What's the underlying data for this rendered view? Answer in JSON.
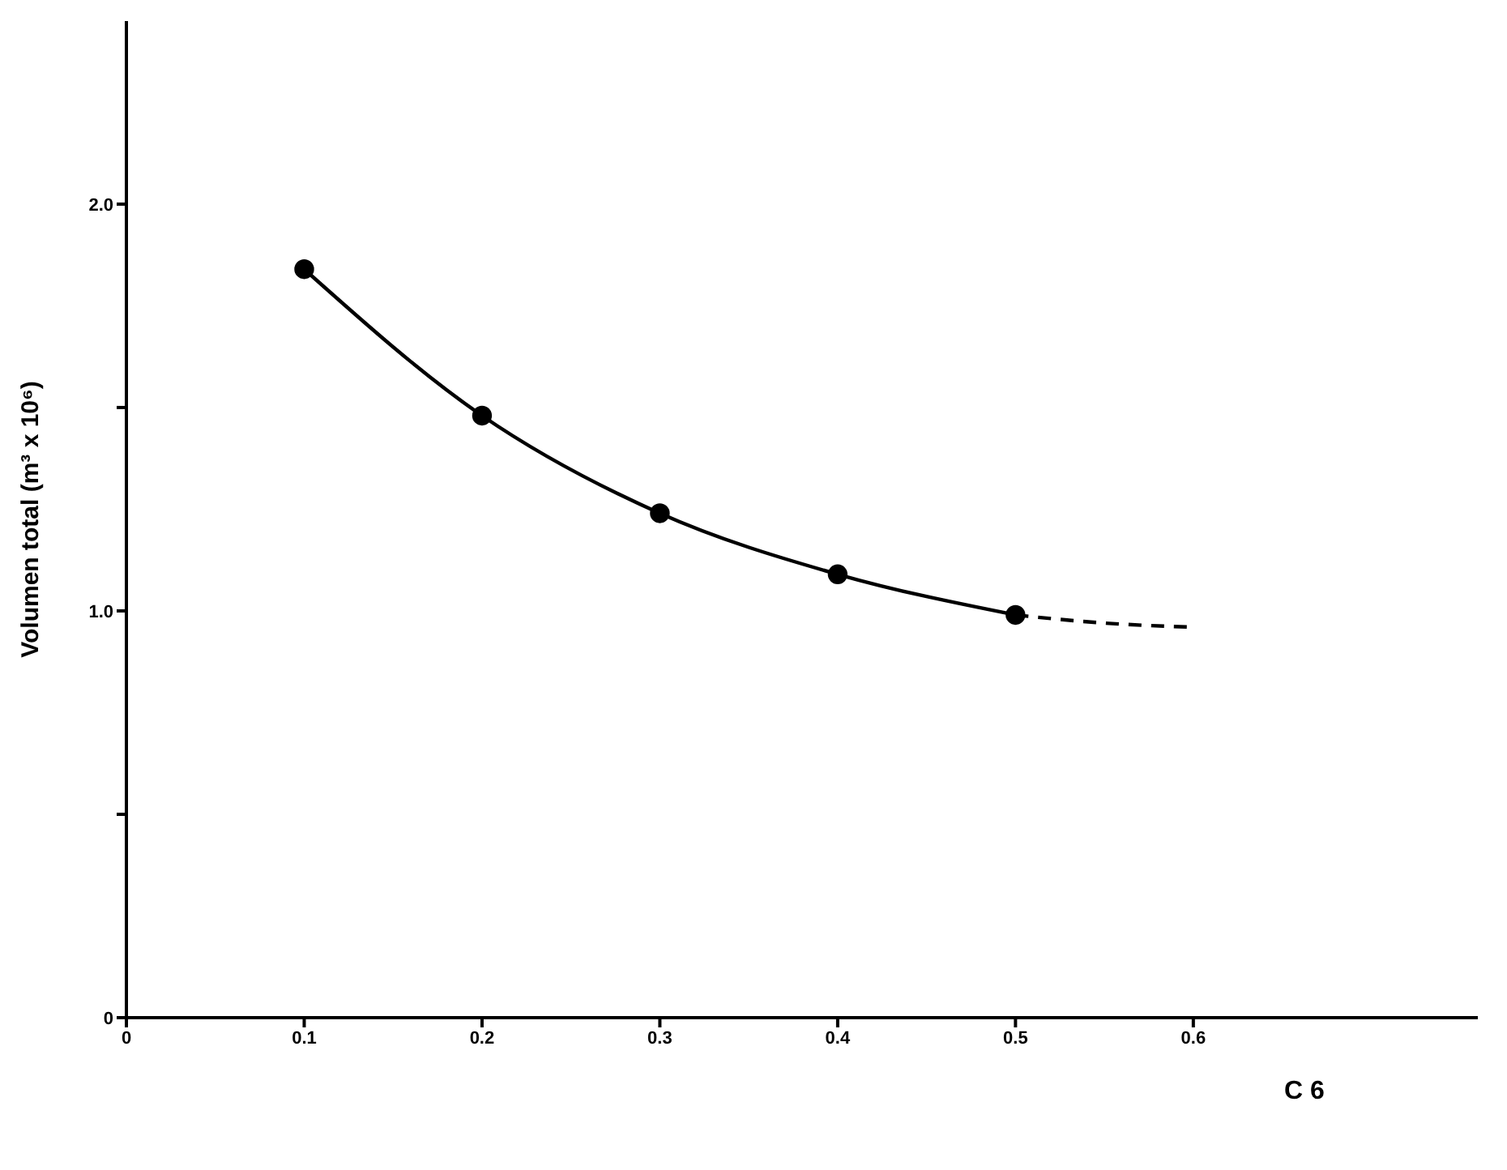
{
  "chart_data": {
    "type": "line",
    "xlabel": "C 6",
    "ylabel": "Volumen total (m³ x 10⁶)",
    "xlim": [
      0,
      0.76
    ],
    "xticks": [
      0,
      0.1,
      0.2,
      0.3,
      0.4,
      0.5,
      0.6
    ],
    "ylim": [
      0,
      2.45
    ],
    "yticks": [
      0,
      {
        "value": 0.5,
        "label": null
      },
      {
        "value": 1,
        "label": "1.0"
      },
      {
        "value": 1.5,
        "label": null
      },
      {
        "value": 2,
        "label": "2.0"
      }
    ],
    "series": [
      {
        "color": "#000000",
        "marker": "circle",
        "line_style": "solid",
        "x": [
          0.1,
          0.2,
          0.3,
          0.4,
          0.5
        ],
        "values": [
          1.84,
          1.48,
          1.24,
          1.09,
          0.99
        ]
      },
      {
        "color": "#000000",
        "marker": "none",
        "line_style": "dashed",
        "x": [
          0.5,
          0.55,
          0.6
        ],
        "values": [
          0.99,
          0.97,
          0.96
        ]
      }
    ]
  }
}
